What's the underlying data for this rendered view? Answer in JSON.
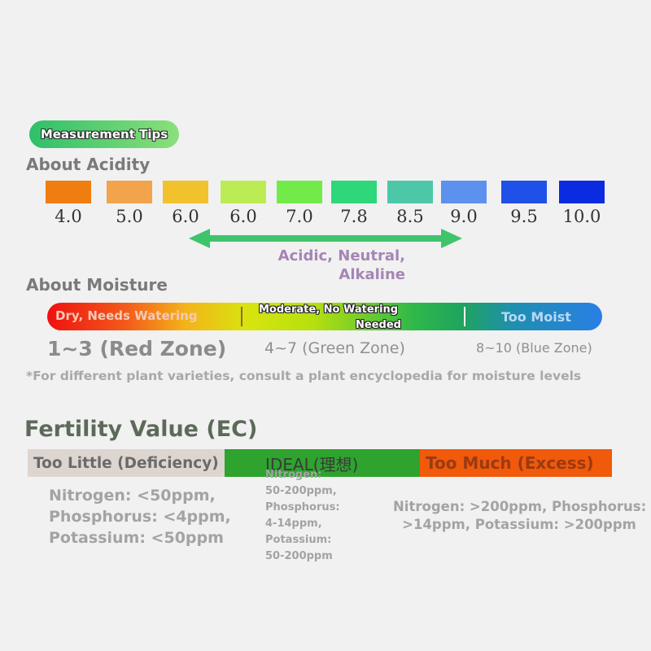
{
  "tips_label": "Measurement Tips",
  "acidity": {
    "title": "About Acidity",
    "swatches": [
      {
        "label": "4.0",
        "color": "#f07d0f"
      },
      {
        "label": "5.0",
        "color": "#f2a34c"
      },
      {
        "label": "6.0",
        "color": "#f2c12e"
      },
      {
        "label": "6.0",
        "color": "#bcec54"
      },
      {
        "label": "7.0",
        "color": "#72ea4a"
      },
      {
        "label": "7.8",
        "color": "#2ed779"
      },
      {
        "label": "8.5",
        "color": "#4cc8a8"
      },
      {
        "label": "9.0",
        "color": "#5c91ee"
      },
      {
        "label": "9.5",
        "color": "#1f50e8"
      },
      {
        "label": "10.0",
        "color": "#0a2be0"
      }
    ],
    "arrow_color": "#3ec46a",
    "description_line1": "Acidic, Neutral,",
    "description_line2": "Alkaline"
  },
  "moisture": {
    "title": "About Moisture",
    "dry_label": "Dry, Needs Watering",
    "moderate_line1": "Moderate, No Watering",
    "moderate_line2": "Needed",
    "moist_label": "Too Moist",
    "zones": {
      "red": "1~3 (Red Zone)",
      "green": "4~7 (Green Zone)",
      "blue": "8~10 (Blue Zone)"
    },
    "note": "*For different plant varieties, consult a plant encyclopedia for moisture levels"
  },
  "fertility": {
    "title": "Fertility Value (EC)",
    "too_little": {
      "label": "Too Little (Deficiency)",
      "color": "#ddd5d0"
    },
    "ideal": {
      "label": "IDEAL(理想)",
      "color": "#2ea32e"
    },
    "too_much": {
      "label": "Too Much (Excess)",
      "color": "#f05a0a"
    },
    "too_little_detail": "Nitrogen: <50ppm,\nPhosphorus: <4ppm,\nPotassium: <50ppm",
    "ideal_detail": "Nitrogen:\n50-200ppm,\nPhosphorus:\n4-14ppm,\nPotassium:\n50-200ppm",
    "too_much_detail_line1": "Nitrogen: >200ppm, Phosphorus:",
    "too_much_detail_line2": ">14ppm, Potassium: >200ppm"
  }
}
